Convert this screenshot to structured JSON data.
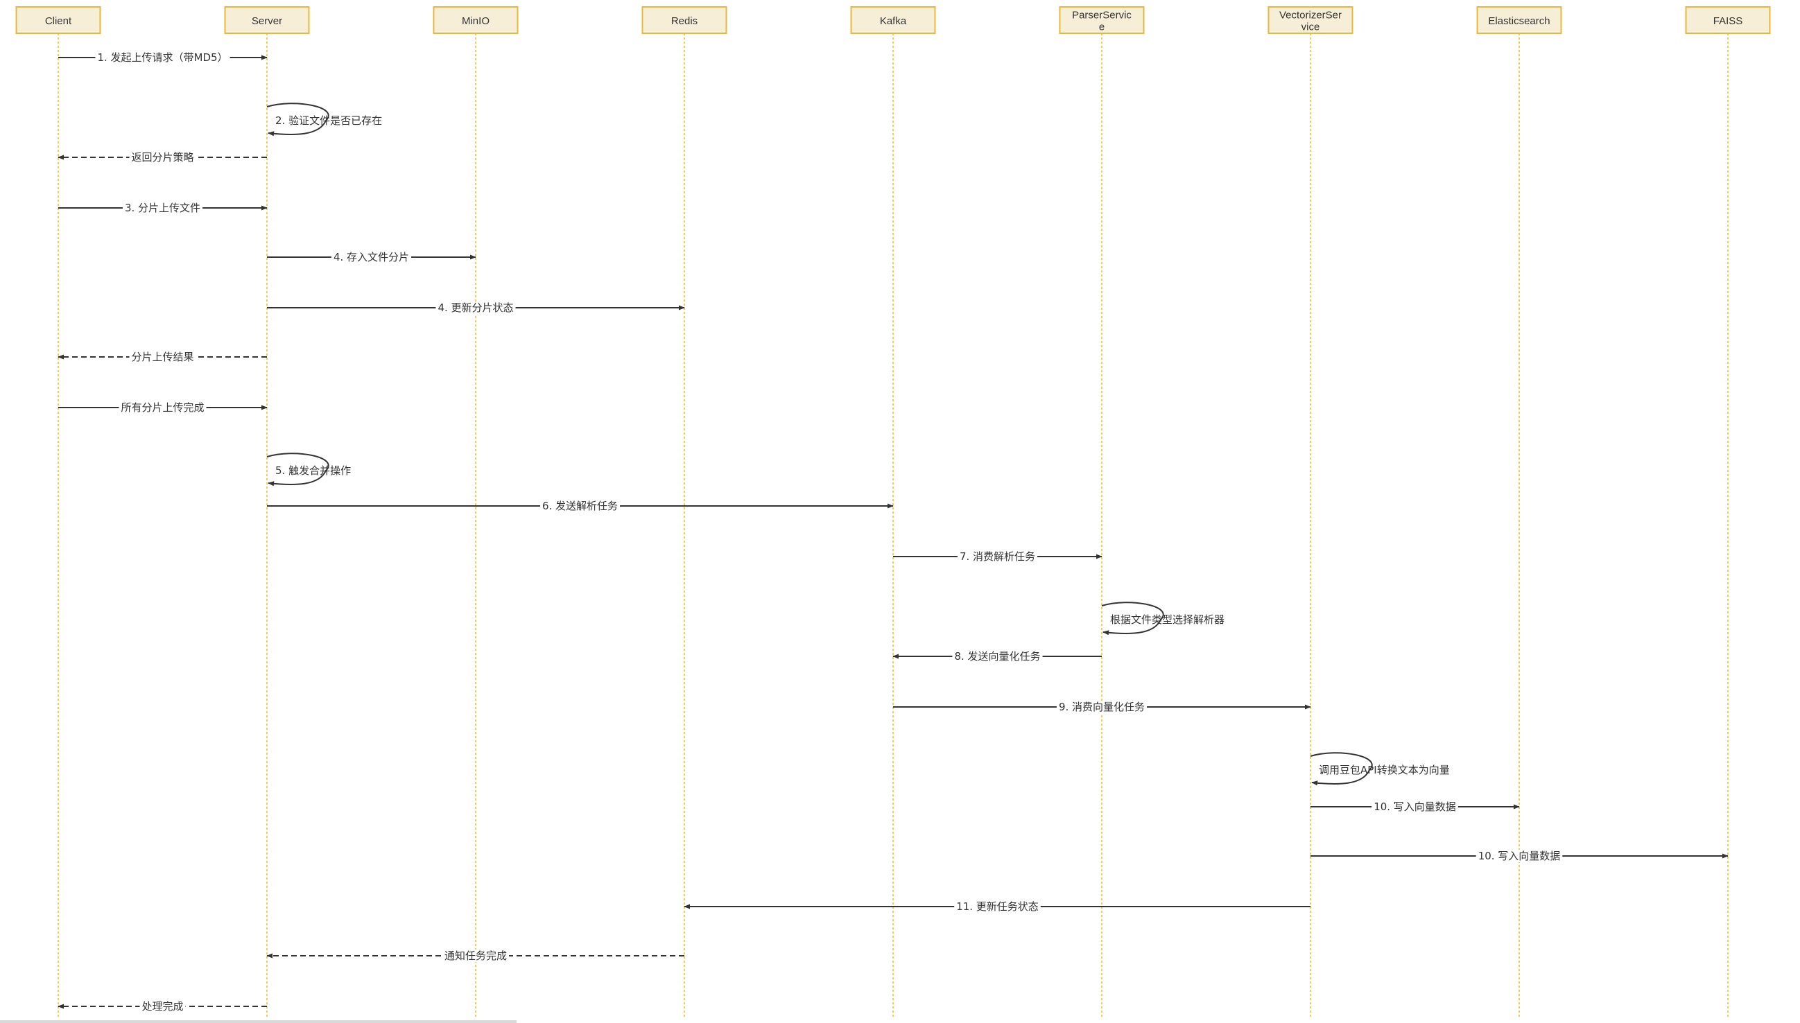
{
  "colors": {
    "participant_fill": "#f6eed6",
    "participant_border": "#e8b83a",
    "lifeline": "#e8b83a",
    "arrow": "#333333"
  },
  "participants": [
    {
      "id": "client",
      "label": [
        "Client"
      ]
    },
    {
      "id": "server",
      "label": [
        "Server"
      ]
    },
    {
      "id": "minio",
      "label": [
        "MinIO"
      ]
    },
    {
      "id": "redis",
      "label": [
        "Redis"
      ]
    },
    {
      "id": "kafka",
      "label": [
        "Kafka"
      ]
    },
    {
      "id": "parser",
      "label": [
        "ParserServic",
        "e"
      ]
    },
    {
      "id": "vectorizer",
      "label": [
        "VectorizerSer",
        "vice"
      ]
    },
    {
      "id": "elasticsearch",
      "label": [
        "Elasticsearch"
      ]
    },
    {
      "id": "faiss",
      "label": [
        "FAISS"
      ]
    }
  ],
  "messages": [
    {
      "from": "client",
      "to": "server",
      "type": "solid",
      "label": "1. 发起上传请求（带MD5）"
    },
    {
      "from": "server",
      "to": "server",
      "type": "self",
      "label": "2. 验证文件是否已存在"
    },
    {
      "from": "server",
      "to": "client",
      "type": "dashed",
      "label": "返回分片策略"
    },
    {
      "from": "client",
      "to": "server",
      "type": "solid",
      "label": "3. 分片上传文件"
    },
    {
      "from": "server",
      "to": "minio",
      "type": "solid",
      "label": "4. 存入文件分片"
    },
    {
      "from": "server",
      "to": "redis",
      "type": "solid",
      "label": "4. 更新分片状态"
    },
    {
      "from": "server",
      "to": "client",
      "type": "dashed",
      "label": "分片上传结果"
    },
    {
      "from": "client",
      "to": "server",
      "type": "solid",
      "label": "所有分片上传完成"
    },
    {
      "from": "server",
      "to": "server",
      "type": "self",
      "label": "5. 触发合并操作"
    },
    {
      "from": "server",
      "to": "kafka",
      "type": "solid",
      "label": "6. 发送解析任务"
    },
    {
      "from": "kafka",
      "to": "parser",
      "type": "solid",
      "label": "7. 消费解析任务"
    },
    {
      "from": "parser",
      "to": "parser",
      "type": "self",
      "label": "根据文件类型选择解析器"
    },
    {
      "from": "parser",
      "to": "kafka",
      "type": "solid",
      "label": "8. 发送向量化任务"
    },
    {
      "from": "kafka",
      "to": "vectorizer",
      "type": "solid",
      "label": "9. 消费向量化任务"
    },
    {
      "from": "vectorizer",
      "to": "vectorizer",
      "type": "self",
      "label": "调用豆包API转换文本为向量"
    },
    {
      "from": "vectorizer",
      "to": "elasticsearch",
      "type": "solid",
      "label": "10. 写入向量数据"
    },
    {
      "from": "vectorizer",
      "to": "faiss",
      "type": "solid",
      "label": "10. 写入向量数据"
    },
    {
      "from": "vectorizer",
      "to": "redis",
      "type": "solid",
      "label": "11. 更新任务状态"
    },
    {
      "from": "redis",
      "to": "server",
      "type": "dashed",
      "label": "通知任务完成"
    },
    {
      "from": "server",
      "to": "client",
      "type": "dashed",
      "label": "处理完成"
    }
  ]
}
